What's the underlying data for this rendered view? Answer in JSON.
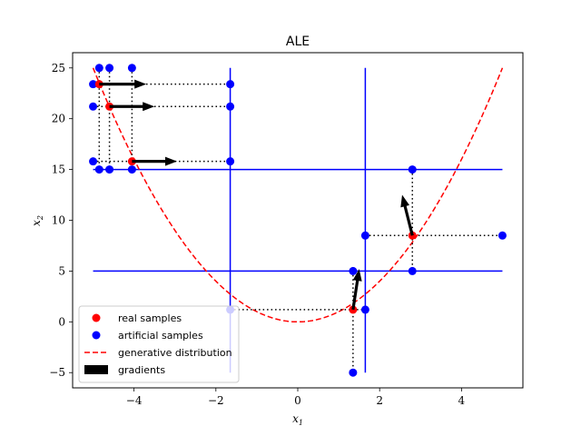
{
  "chart_data": {
    "type": "scatter",
    "title": "ALE",
    "xlabel": "x1",
    "ylabel": "x2",
    "xlim": [
      -5.5,
      5.5
    ],
    "ylim": [
      -6.5,
      26.5
    ],
    "xticks": [
      -4,
      -2,
      0,
      2,
      4
    ],
    "yticks": [
      -5,
      0,
      5,
      10,
      15,
      20,
      25
    ],
    "xtick_labels": [
      "−4",
      "−2",
      "0",
      "2",
      "4"
    ],
    "ytick_labels": [
      "−5",
      "0",
      "5",
      "10",
      "15",
      "20",
      "25"
    ],
    "grid": false,
    "legend_position": "lower-left",
    "colors": {
      "real": "#ff0000",
      "artificial": "#0000ff",
      "distribution": "#ff0000",
      "gradient": "#000000",
      "grid_lines": "#0000ff"
    },
    "legend": [
      {
        "label": "real samples",
        "kind": "marker",
        "color": "#ff0000"
      },
      {
        "label": "artificial samples",
        "kind": "marker",
        "color": "#0000ff"
      },
      {
        "label": "generative distribution",
        "kind": "dashed",
        "color": "#ff0000"
      },
      {
        "label": "gradients",
        "kind": "patch",
        "color": "#000000"
      }
    ],
    "generative_distribution": {
      "formula": "x2 = x1^2",
      "x_range": [
        -5,
        5
      ]
    },
    "vertical_lines": [
      {
        "x": -1.65,
        "y_range": [
          -5,
          25
        ]
      },
      {
        "x": 1.65,
        "y_range": [
          -5,
          25
        ]
      }
    ],
    "horizontal_lines": [
      {
        "y": 5,
        "x_range": [
          -5,
          5
        ]
      },
      {
        "y": 15,
        "x_range": [
          -5,
          5
        ]
      }
    ],
    "real_samples": [
      {
        "x": -4.85,
        "y": 23.4
      },
      {
        "x": -4.6,
        "y": 21.2
      },
      {
        "x": -4.05,
        "y": 15.8
      },
      {
        "x": 1.35,
        "y": 1.2
      },
      {
        "x": 2.8,
        "y": 8.5
      }
    ],
    "artificial_samples": [
      {
        "x": -4.85,
        "y": 25.0
      },
      {
        "x": -4.6,
        "y": 25.0
      },
      {
        "x": -4.05,
        "y": 25.0
      },
      {
        "x": -5.0,
        "y": 23.4
      },
      {
        "x": -1.65,
        "y": 23.4
      },
      {
        "x": -5.0,
        "y": 21.2
      },
      {
        "x": -1.65,
        "y": 21.2
      },
      {
        "x": -5.0,
        "y": 15.8
      },
      {
        "x": -1.65,
        "y": 15.8
      },
      {
        "x": -4.85,
        "y": 15.0
      },
      {
        "x": -4.6,
        "y": 15.0
      },
      {
        "x": -4.05,
        "y": 15.0
      },
      {
        "x": -1.65,
        "y": 1.2
      },
      {
        "x": 1.35,
        "y": 5.0
      },
      {
        "x": 1.35,
        "y": -5.0
      },
      {
        "x": 1.65,
        "y": 1.2
      },
      {
        "x": 1.65,
        "y": 8.5
      },
      {
        "x": 5.0,
        "y": 8.5
      },
      {
        "x": 2.8,
        "y": 15.0
      },
      {
        "x": 2.8,
        "y": 5.0
      }
    ],
    "dotted_connectors": [
      {
        "x1": -4.85,
        "y1": 25.0,
        "x2": -4.85,
        "y2": 15.0
      },
      {
        "x1": -4.6,
        "y1": 25.0,
        "x2": -4.6,
        "y2": 15.0
      },
      {
        "x1": -4.05,
        "y1": 25.0,
        "x2": -4.05,
        "y2": 15.0
      },
      {
        "x1": -5.0,
        "y1": 23.4,
        "x2": -1.65,
        "y2": 23.4
      },
      {
        "x1": -5.0,
        "y1": 21.2,
        "x2": -1.65,
        "y2": 21.2
      },
      {
        "x1": -5.0,
        "y1": 15.8,
        "x2": -1.65,
        "y2": 15.8
      },
      {
        "x1": -1.65,
        "y1": 1.2,
        "x2": 1.65,
        "y2": 1.2
      },
      {
        "x1": 1.35,
        "y1": 5.0,
        "x2": 1.35,
        "y2": -5.0
      },
      {
        "x1": 1.65,
        "y1": 8.5,
        "x2": 5.0,
        "y2": 8.5
      },
      {
        "x1": 2.8,
        "y1": 15.0,
        "x2": 2.8,
        "y2": 5.0
      }
    ],
    "gradients": [
      {
        "x": -4.85,
        "y": 23.4,
        "dx": 1.15,
        "dy": 0.0
      },
      {
        "x": -4.6,
        "y": 21.2,
        "dx": 1.1,
        "dy": 0.0
      },
      {
        "x": -4.05,
        "y": 15.8,
        "dx": 1.1,
        "dy": 0.0
      },
      {
        "x": 1.35,
        "y": 1.2,
        "dx": 0.15,
        "dy": 4.0
      },
      {
        "x": 2.8,
        "y": 8.5,
        "dx": -0.25,
        "dy": 4.0
      }
    ]
  }
}
